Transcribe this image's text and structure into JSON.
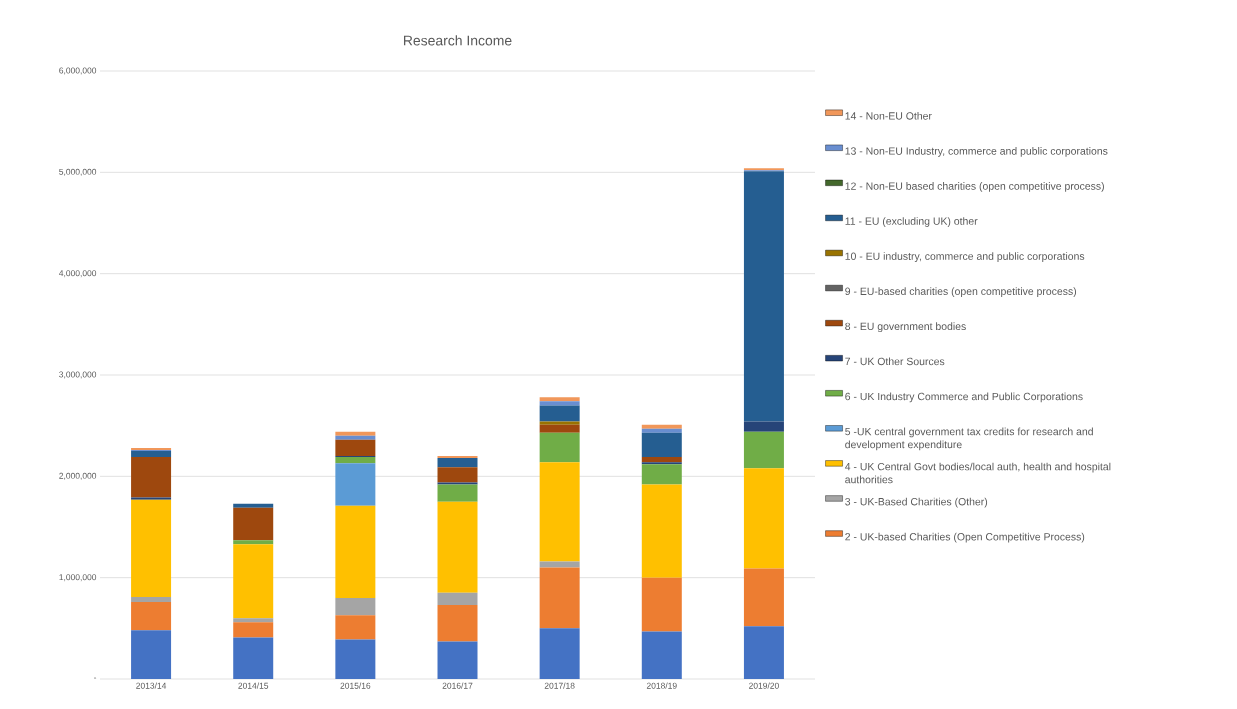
{
  "chart_data": {
    "type": "bar",
    "title": "Research Income",
    "stacked": true,
    "grid": "y",
    "legend": "right",
    "categories": [
      "2013/14",
      "2014/15",
      "2015/16",
      "2016/17",
      "2017/18",
      "2018/19",
      "2019/20"
    ],
    "ylim": [
      0,
      6000000
    ],
    "yticks": [
      {
        "value": 0,
        "label": "-"
      },
      {
        "value": 1000000,
        "label": "1,000,000"
      },
      {
        "value": 2000000,
        "label": "2,000,000"
      },
      {
        "value": 3000000,
        "label": "3,000,000"
      },
      {
        "value": 4000000,
        "label": "4,000,000"
      },
      {
        "value": 5000000,
        "label": "5,000,000"
      },
      {
        "value": 6000000,
        "label": "6,000,000"
      }
    ],
    "series": [
      {
        "color": "#4472c4",
        "values": [
          480000,
          410000,
          390000,
          370000,
          500000,
          470000,
          520000
        ]
      },
      {
        "name": "2 - UK-based Charities (Open Competitive Process)",
        "color": "#ed7d31",
        "values": [
          280000,
          150000,
          240000,
          360000,
          600000,
          530000,
          570000
        ]
      },
      {
        "name": "3 - UK-Based Charities (Other)",
        "color": "#a5a5a5",
        "values": [
          50000,
          40000,
          170000,
          120000,
          60000,
          0,
          0
        ]
      },
      {
        "name": "4 - UK Central Govt bodies/local auth, health and hospital authorities",
        "color": "#ffc000",
        "values": [
          960000,
          730000,
          910000,
          900000,
          980000,
          920000,
          990000
        ]
      },
      {
        "name": "5 -UK central government tax credits for research and development expenditure",
        "color": "#5b9bd5",
        "values": [
          0,
          0,
          420000,
          0,
          0,
          0,
          0
        ]
      },
      {
        "name": "6 - UK Industry Commerce and Public Corporations",
        "color": "#70ad47",
        "values": [
          0,
          40000,
          60000,
          170000,
          290000,
          200000,
          360000
        ]
      },
      {
        "name": "7 - UK Other Sources",
        "color": "#264478",
        "values": [
          20000,
          0,
          10000,
          20000,
          0,
          20000,
          100000
        ]
      },
      {
        "name": "8 - EU government bodies",
        "color": "#9e480e",
        "values": [
          400000,
          320000,
          160000,
          150000,
          80000,
          50000,
          0
        ]
      },
      {
        "name": "9 - EU-based charities (open competitive process)",
        "color": "#636363",
        "values": [
          0,
          0,
          0,
          0,
          0,
          0,
          0
        ]
      },
      {
        "name": "10 - EU industry, commerce and public corporations",
        "color": "#997300",
        "values": [
          0,
          0,
          0,
          0,
          30000,
          0,
          0
        ]
      },
      {
        "name": "11 - EU (excluding UK) other",
        "color": "#255e91",
        "values": [
          60000,
          40000,
          0,
          90000,
          160000,
          240000,
          2470000
        ]
      },
      {
        "name": "12 - Non-EU based charities (open competitive process)",
        "color": "#43682b",
        "values": [
          0,
          0,
          0,
          0,
          0,
          0,
          0
        ]
      },
      {
        "name": "13 - Non-EU Industry, commerce and public corporations",
        "color": "#698ed0",
        "values": [
          10000,
          0,
          40000,
          0,
          40000,
          40000,
          10000
        ]
      },
      {
        "name": "14 - Non-EU Other",
        "color": "#f1975a",
        "values": [
          20000,
          0,
          40000,
          20000,
          40000,
          40000,
          20000
        ]
      }
    ]
  }
}
